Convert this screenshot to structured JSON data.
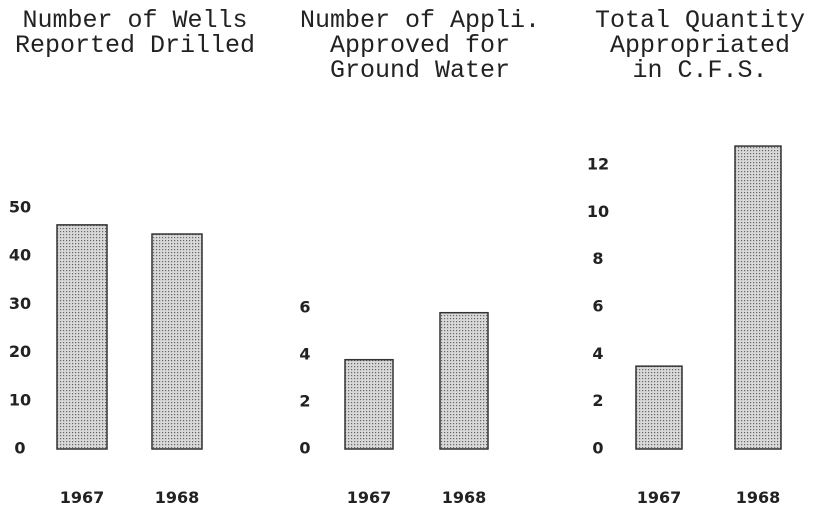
{
  "chart_data": [
    {
      "type": "bar",
      "title": [
        "Number of Wells",
        "Reported Drilled"
      ],
      "categories": [
        "1967",
        "1968"
      ],
      "values": [
        46.5,
        44.6
      ],
      "color": "#bdbdbd",
      "ylim": [
        0,
        50
      ],
      "yticks": [
        0,
        10,
        20,
        30,
        40,
        50
      ]
    },
    {
      "type": "bar",
      "title": [
        "Number of Appli.",
        "Approved for",
        "Ground Water"
      ],
      "categories": [
        "1967",
        "1968"
      ],
      "values": [
        3.8,
        5.8
      ],
      "color": "#bdbdbd",
      "ylim": [
        0,
        6
      ],
      "yticks": [
        0,
        2,
        4,
        6
      ]
    },
    {
      "type": "bar",
      "title": [
        "Total Quantity",
        "Appropriated",
        "in C.F.S."
      ],
      "categories": [
        "1967",
        "1968"
      ],
      "values": [
        3.5,
        12.8
      ],
      "color": "#bdbdbd",
      "ylim": [
        0,
        12
      ],
      "yticks": [
        0,
        2,
        4,
        6,
        8,
        10,
        12
      ]
    }
  ]
}
